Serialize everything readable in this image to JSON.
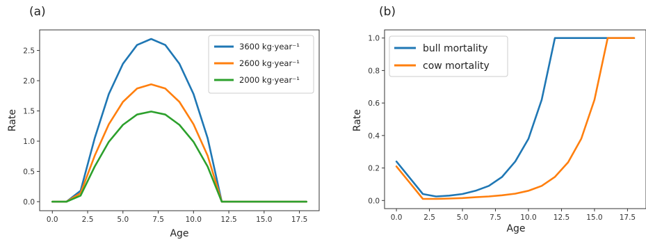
{
  "panels": [
    {
      "tag": "(a)"
    },
    {
      "tag": "(b)"
    }
  ],
  "chart_data": [
    {
      "type": "line",
      "xlabel": "Age",
      "ylabel": "Rate",
      "xlim": [
        -0.9,
        18.9
      ],
      "ylim": [
        -0.15,
        2.84
      ],
      "xticks": [
        0,
        2.5,
        5,
        7.5,
        10,
        12.5,
        15,
        17.5
      ],
      "xtick_labels": [
        "0.0",
        "2.5",
        "5.0",
        "7.5",
        "10.0",
        "12.5",
        "15.0",
        "17.5"
      ],
      "yticks": [
        0,
        0.5,
        1,
        1.5,
        2,
        2.5
      ],
      "ytick_labels": [
        "0.0",
        "0.5",
        "1.0",
        "1.5",
        "2.0",
        "2.5"
      ],
      "legend_position": "top-right",
      "x": [
        0,
        1,
        2,
        3,
        4,
        5,
        6,
        7,
        8,
        9,
        10,
        11,
        12,
        13,
        14,
        15,
        16,
        17,
        18
      ],
      "series": [
        {
          "name": "3600 kg·year⁻¹",
          "color": "#1f77b4",
          "values": [
            0,
            0,
            0.18,
            1.05,
            1.78,
            2.28,
            2.59,
            2.69,
            2.59,
            2.28,
            1.78,
            1.05,
            0,
            0,
            0,
            0,
            0,
            0,
            0
          ]
        },
        {
          "name": "2600 kg·year⁻¹",
          "color": "#ff7f0e",
          "values": [
            0,
            0,
            0.14,
            0.76,
            1.28,
            1.65,
            1.87,
            1.94,
            1.87,
            1.65,
            1.28,
            0.76,
            0,
            0,
            0,
            0,
            0,
            0,
            0
          ]
        },
        {
          "name": "2000 kg·year⁻¹",
          "color": "#2ca02c",
          "values": [
            0,
            0,
            0.1,
            0.58,
            0.99,
            1.27,
            1.44,
            1.49,
            1.44,
            1.27,
            0.99,
            0.58,
            0,
            0,
            0,
            0,
            0,
            0,
            0
          ]
        }
      ]
    },
    {
      "type": "line",
      "xlabel": "Age",
      "ylabel": "Rate",
      "xlim": [
        -0.9,
        18.9
      ],
      "ylim": [
        -0.05,
        1.05
      ],
      "xticks": [
        0,
        2.5,
        5,
        7.5,
        10,
        12.5,
        15,
        17.5
      ],
      "xtick_labels": [
        "0.0",
        "2.5",
        "5.0",
        "7.5",
        "10.0",
        "12.5",
        "15.0",
        "17.5"
      ],
      "yticks": [
        0,
        0.2,
        0.4,
        0.6,
        0.8,
        1.0
      ],
      "ytick_labels": [
        "0.0",
        "0.2",
        "0.4",
        "0.6",
        "0.8",
        "1.0"
      ],
      "legend_position": "top-left",
      "x": [
        0,
        1,
        2,
        3,
        4,
        5,
        6,
        7,
        8,
        9,
        10,
        11,
        12,
        13,
        14,
        15,
        16,
        17,
        18
      ],
      "series": [
        {
          "name": "bull mortality",
          "color": "#1f77b4",
          "values": [
            0.24,
            0.14,
            0.04,
            0.025,
            0.03,
            0.04,
            0.06,
            0.09,
            0.145,
            0.24,
            0.38,
            0.62,
            1.0,
            1.0,
            1.0,
            1.0,
            1.0,
            1.0,
            1.0
          ]
        },
        {
          "name": "cow mortality",
          "color": "#ff7f0e",
          "values": [
            0.21,
            0.11,
            0.01,
            0.01,
            0.012,
            0.015,
            0.02,
            0.025,
            0.032,
            0.042,
            0.06,
            0.09,
            0.145,
            0.235,
            0.38,
            0.62,
            1.0,
            1.0,
            1.0
          ]
        }
      ]
    }
  ]
}
